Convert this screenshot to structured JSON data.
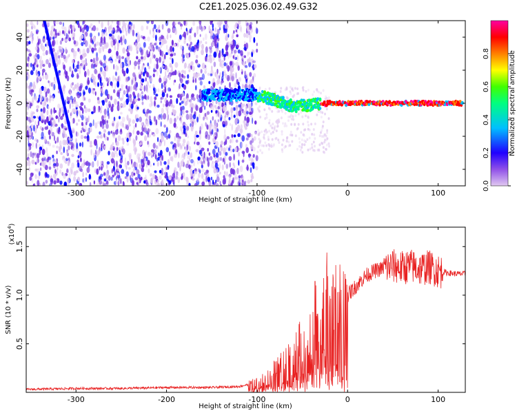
{
  "title": "C2E1.2025.036.02.49.G32",
  "chart_data": [
    {
      "type": "heatmap",
      "xlabel": "Height of straight line (km)",
      "ylabel": "Frequency (Hz)",
      "xlim": [
        -355,
        130
      ],
      "ylim": [
        -50,
        50
      ],
      "xticks": [
        -300,
        -200,
        -100,
        0,
        100
      ],
      "yticks": [
        -40,
        -20,
        0,
        20,
        40
      ],
      "colorbar": {
        "label": "Normalized spectral amplitude",
        "range": [
          0,
          1
        ],
        "ticks": [
          "0.0",
          "0.2",
          "0.4",
          "0.6",
          "0.8"
        ],
        "colors": [
          "#e0c8f0",
          "#7030e0",
          "#0000ff",
          "#00c0ff",
          "#00ff80",
          "#40ff00",
          "#ffff00",
          "#ff8000",
          "#ff0000",
          "#ff00a0"
        ]
      },
      "trace": {
        "diffuse_region_x": [
          -355,
          -100
        ],
        "compact_band": [
          {
            "x": -100,
            "f": 5
          },
          {
            "x": -80,
            "f": 2
          },
          {
            "x": -60,
            "f": -2
          },
          {
            "x": -40,
            "f": -1
          },
          {
            "x": -20,
            "f": 0
          },
          {
            "x": 0,
            "f": 0
          },
          {
            "x": 50,
            "f": 0
          },
          {
            "x": 100,
            "f": 0
          },
          {
            "x": 130,
            "f": 0
          }
        ]
      }
    },
    {
      "type": "line",
      "xlabel": "Height of straight line (km)",
      "ylabel": "SNR (10 * v/v)",
      "y_multiplier_label": "(x10",
      "y_multiplier_exp": "4",
      "xlim": [
        -355,
        130
      ],
      "ylim": [
        0,
        1.7
      ],
      "xticks": [
        -300,
        -200,
        -100,
        0,
        100
      ],
      "yticks": [
        "0.5",
        "1.0",
        "1.5"
      ],
      "series": [
        {
          "color": "#e82020",
          "x": [
            -355,
            -300,
            -250,
            -200,
            -150,
            -120,
            -100,
            -90,
            -80,
            -70,
            -60,
            -50,
            -45,
            -40,
            -35,
            -30,
            -25,
            -20,
            -15,
            -10,
            -5,
            0,
            10,
            20,
            30,
            40,
            50,
            60,
            70,
            80,
            90,
            100,
            110,
            120,
            130
          ],
          "y": [
            0.03,
            0.04,
            0.04,
            0.05,
            0.05,
            0.06,
            0.1,
            0.15,
            0.22,
            0.3,
            0.4,
            0.5,
            0.45,
            0.6,
            0.8,
            0.55,
            1.0,
            0.85,
            0.8,
            0.95,
            0.9,
            1.0,
            1.1,
            1.2,
            1.25,
            1.28,
            1.3,
            1.28,
            1.3,
            1.27,
            1.29,
            1.25,
            1.23,
            1.22,
            1.22
          ]
        }
      ]
    }
  ]
}
